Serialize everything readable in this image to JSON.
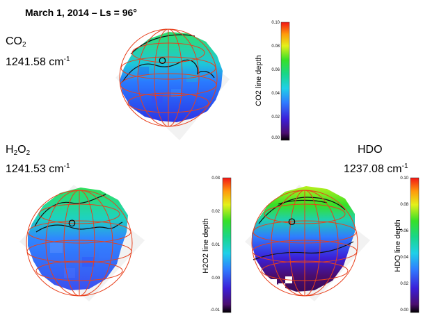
{
  "title": "March 1, 2014 – Ls = 96°",
  "panels": {
    "co2": {
      "species_main": "CO",
      "species_sub": "2",
      "wavenumber": "1241.58 cm",
      "unit_sup": "-1",
      "marker": "O",
      "colorbar_label": "CO2 line depth",
      "ticks": [
        "0.10",
        "0.08",
        "0.06",
        "0.04",
        "0.02",
        "0.00"
      ]
    },
    "h2o2": {
      "species_h": "H",
      "species_sub1": "2",
      "species_o": "O",
      "species_sub2": "2",
      "wavenumber": "1241.53 cm",
      "unit_sup": "-1",
      "marker": "O",
      "colorbar_label": "H2O2 line depth",
      "ticks": [
        "0.03",
        "0.02",
        "0.01",
        "0.00",
        "-0.01"
      ]
    },
    "hdo": {
      "species": "HDO",
      "wavenumber": "1237.08 cm",
      "unit_sup": "-1",
      "marker": "O",
      "colorbar_label": "HDO line depth",
      "ticks": [
        "0.10",
        "0.08",
        "0.06",
        "0.04",
        "0.02",
        "0.00"
      ]
    }
  },
  "colors": {
    "grid": "#e8401c",
    "contour": "#111111"
  }
}
